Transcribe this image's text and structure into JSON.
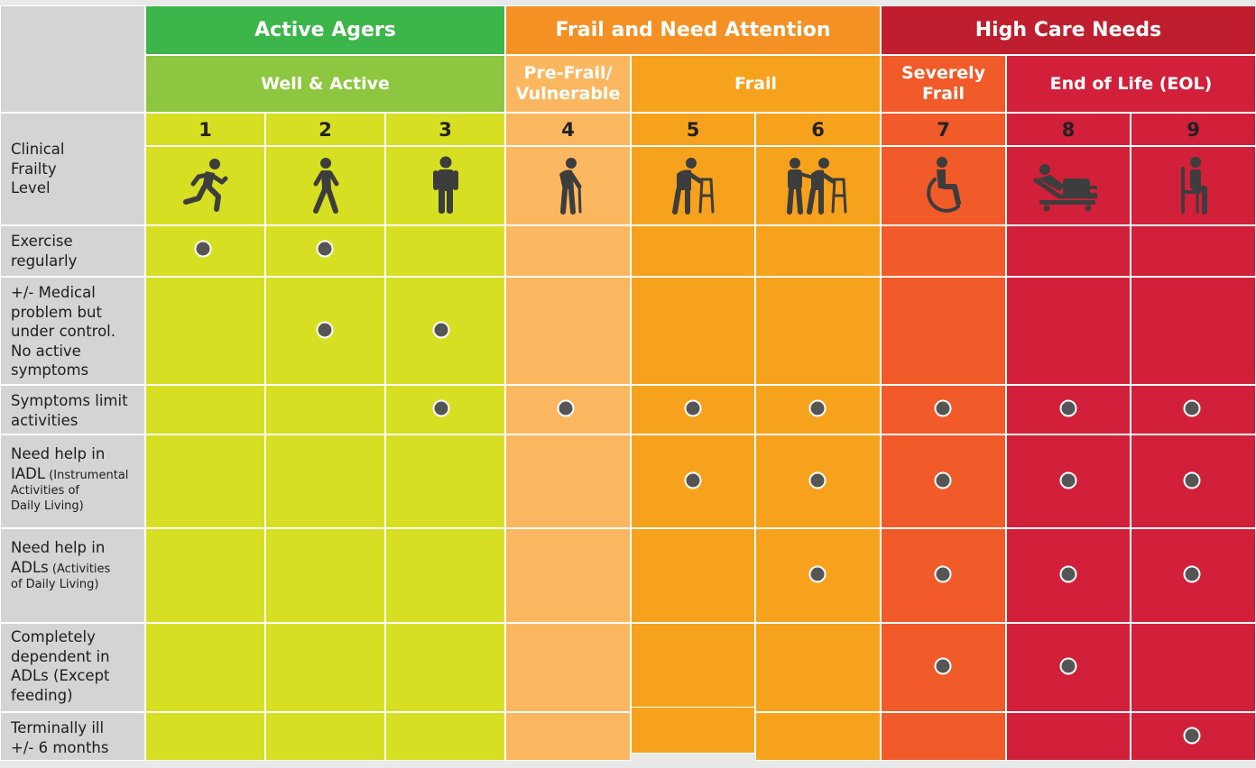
{
  "groups": [
    {
      "label": "Active Agers",
      "color": "#3cb54a"
    },
    {
      "label": "Frail and Need Attention",
      "color": "#f39124"
    },
    {
      "label": "High Care Needs",
      "color": "#be1e2d"
    }
  ],
  "subgroups": [
    {
      "label": "Well & Active",
      "color": "#8dc63f"
    },
    {
      "label_line1": "Pre-Frail/",
      "label_line2": "Vulnerable",
      "color": "#fbb760"
    },
    {
      "label": "Frail",
      "color": "#f7a21c"
    },
    {
      "label_line1": "Severely",
      "label_line2": "Frail",
      "color": "#f15a29"
    },
    {
      "label": "End of Life (EOL)",
      "color": "#d2203a"
    }
  ],
  "levels": [
    {
      "number": "1",
      "icon": "running-person-icon",
      "color": "#d7df23"
    },
    {
      "number": "2",
      "icon": "walking-person-icon",
      "color": "#d7df23"
    },
    {
      "number": "3",
      "icon": "standing-person-icon",
      "color": "#d7df23"
    },
    {
      "number": "4",
      "icon": "person-with-cane-icon",
      "color": "#fbb760"
    },
    {
      "number": "5",
      "icon": "person-with-walker-icon",
      "color": "#f7a21c"
    },
    {
      "number": "6",
      "icon": "assisted-person-with-walker-icon",
      "color": "#f7a21c"
    },
    {
      "number": "7",
      "icon": "wheelchair-icon",
      "color": "#f15a29"
    },
    {
      "number": "8",
      "icon": "person-in-bed-icon",
      "color": "#d2203a"
    },
    {
      "number": "9",
      "icon": "person-seated-in-chair-icon",
      "color": "#d2203a"
    }
  ],
  "header_row_label": {
    "line1": "Clinical",
    "line2": "Frailty",
    "line3": "Level"
  },
  "rows": [
    {
      "lines": [
        "Exercise",
        "regularly"
      ],
      "marks": [
        1,
        1,
        0,
        0,
        0,
        0,
        0,
        0,
        0
      ]
    },
    {
      "lines": [
        "+/- Medical",
        "problem but",
        "under control.",
        "No active",
        "symptoms"
      ],
      "marks": [
        0,
        1,
        1,
        0,
        0,
        0,
        0,
        0,
        0
      ]
    },
    {
      "lines": [
        "Symptoms limit",
        "activities"
      ],
      "marks": [
        0,
        0,
        1,
        1,
        1,
        1,
        1,
        1,
        1
      ]
    },
    {
      "main1": "Need help in",
      "main2": "IADL",
      "small1": " (Instrumental",
      "small2": "Activities of",
      "small3": "Daily Living)",
      "marks": [
        0,
        0,
        0,
        0,
        1,
        1,
        1,
        1,
        1
      ]
    },
    {
      "main1": "Need help in",
      "main2": "ADLs",
      "small1": " (Activities",
      "small2": "of Daily Living)",
      "marks": [
        0,
        0,
        0,
        0,
        0,
        1,
        1,
        1,
        1
      ]
    },
    {
      "lines": [
        "Completely",
        "dependent in",
        "ADLs (Except",
        "feeding)"
      ],
      "marks": [
        0,
        0,
        0,
        0,
        0,
        0,
        1,
        1,
        0
      ]
    },
    {
      "lines": [
        "Terminally ill",
        "+/- 6 months"
      ],
      "marks": [
        0,
        0,
        0,
        0,
        0,
        0,
        0,
        0,
        1
      ]
    }
  ],
  "colors": {
    "label_bg": "#d3d4d4",
    "dot": "#555555",
    "icon": "#3d3d3d"
  }
}
